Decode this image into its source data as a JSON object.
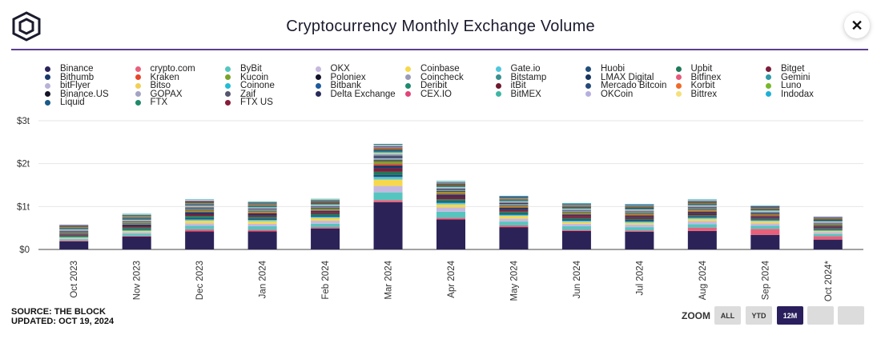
{
  "title": "Cryptocurrency Monthly Exchange Volume",
  "footer": {
    "source": "SOURCE: THE BLOCK",
    "updated": "UPDATED: OCT 19, 2024"
  },
  "zoom": {
    "label": "ZOOM",
    "buttons": [
      "ALL",
      "YTD",
      "12M",
      "",
      ""
    ],
    "active": "12M"
  },
  "legend": [
    {
      "name": "Binance",
      "color": "#2b2358"
    },
    {
      "name": "crypto.com",
      "color": "#e8607a"
    },
    {
      "name": "ByBit",
      "color": "#54c6bf"
    },
    {
      "name": "OKX",
      "color": "#c5b8e0"
    },
    {
      "name": "Coinbase",
      "color": "#f7d84b"
    },
    {
      "name": "Gate.io",
      "color": "#4fc7de"
    },
    {
      "name": "Huobi",
      "color": "#1f4e79"
    },
    {
      "name": "Upbit",
      "color": "#1f7a5a"
    },
    {
      "name": "Bitget",
      "color": "#7a1f3a"
    },
    {
      "name": "Bithumb",
      "color": "#1b3a6b"
    },
    {
      "name": "Kraken",
      "color": "#e8452a"
    },
    {
      "name": "Kucoin",
      "color": "#7aa22b"
    },
    {
      "name": "Poloniex",
      "color": "#12122a"
    },
    {
      "name": "Coincheck",
      "color": "#9a9ab8"
    },
    {
      "name": "Bitstamp",
      "color": "#3a8f8f"
    },
    {
      "name": "LMAX Digital",
      "color": "#16365e"
    },
    {
      "name": "Bitfinex",
      "color": "#e65a7a"
    },
    {
      "name": "Gemini",
      "color": "#2f9aa8"
    },
    {
      "name": "bitFlyer",
      "color": "#b8b2d8"
    },
    {
      "name": "Bitso",
      "color": "#f2cf55"
    },
    {
      "name": "Coinone",
      "color": "#22bcd4"
    },
    {
      "name": "Bitbank",
      "color": "#1d5a9e"
    },
    {
      "name": "Deribit",
      "color": "#1e8a6e"
    },
    {
      "name": "itBit",
      "color": "#6e1a2e"
    },
    {
      "name": "Mercado Bitcoin",
      "color": "#244a7a"
    },
    {
      "name": "Korbit",
      "color": "#ef6a2a"
    },
    {
      "name": "Luno",
      "color": "#78b82a"
    },
    {
      "name": "Binance.US",
      "color": "#141428"
    },
    {
      "name": "GOPAX",
      "color": "#a3a3c6"
    },
    {
      "name": "Zaif",
      "color": "#555570"
    },
    {
      "name": "Delta Exchange",
      "color": "#2a2a5a"
    },
    {
      "name": "CEX.IO",
      "color": "#e0457a"
    },
    {
      "name": "BitMEX",
      "color": "#3fb5a5"
    },
    {
      "name": "OKCoin",
      "color": "#b7aee0"
    },
    {
      "name": "Bittrex",
      "color": "#f5e07a"
    },
    {
      "name": "Indodax",
      "color": "#1fb0d8"
    },
    {
      "name": "Liquid",
      "color": "#1a5a8a"
    },
    {
      "name": "FTX",
      "color": "#1f8a6a"
    },
    {
      "name": "FTX US",
      "color": "#8a1a3a"
    }
  ],
  "chart_data": {
    "type": "bar",
    "stacked": true,
    "title": "Cryptocurrency Monthly Exchange Volume",
    "xlabel": "",
    "ylabel": "",
    "ylim": [
      0,
      3
    ],
    "y_ticks": [
      "$0",
      "$1t",
      "$2t",
      "$3t"
    ],
    "grid": true,
    "legend_position": "top",
    "categories": [
      "Oct 2023",
      "Nov 2023",
      "Dec 2023",
      "Jan 2024",
      "Feb 2024",
      "Mar 2024",
      "Apr 2024",
      "May 2024",
      "Jun 2024",
      "Jul 2024",
      "Aug 2024",
      "Sep 2024",
      "Oct 2024*"
    ],
    "series": [
      {
        "name": "Binance",
        "values": [
          0.19,
          0.3,
          0.42,
          0.42,
          0.49,
          1.1,
          0.7,
          0.52,
          0.43,
          0.41,
          0.43,
          0.34,
          0.23
        ]
      },
      {
        "name": "crypto.com",
        "values": [
          0.02,
          0.02,
          0.05,
          0.04,
          0.03,
          0.05,
          0.04,
          0.04,
          0.03,
          0.03,
          0.08,
          0.14,
          0.08
        ]
      },
      {
        "name": "ByBit",
        "values": [
          0.03,
          0.05,
          0.08,
          0.08,
          0.08,
          0.18,
          0.14,
          0.09,
          0.08,
          0.08,
          0.08,
          0.07,
          0.05
        ]
      },
      {
        "name": "OKX",
        "values": [
          0.02,
          0.03,
          0.06,
          0.06,
          0.07,
          0.15,
          0.1,
          0.07,
          0.06,
          0.06,
          0.07,
          0.06,
          0.04
        ]
      },
      {
        "name": "Coinbase",
        "values": [
          0.02,
          0.03,
          0.06,
          0.06,
          0.06,
          0.15,
          0.07,
          0.06,
          0.04,
          0.04,
          0.05,
          0.05,
          0.03
        ]
      },
      {
        "name": "Gate.io",
        "values": [
          0.01,
          0.02,
          0.03,
          0.03,
          0.03,
          0.06,
          0.04,
          0.03,
          0.03,
          0.03,
          0.03,
          0.02,
          0.02
        ]
      },
      {
        "name": "Huobi",
        "values": [
          0.01,
          0.02,
          0.03,
          0.03,
          0.03,
          0.05,
          0.03,
          0.03,
          0.03,
          0.03,
          0.03,
          0.02,
          0.02
        ]
      },
      {
        "name": "Upbit",
        "values": [
          0.02,
          0.04,
          0.05,
          0.04,
          0.04,
          0.07,
          0.05,
          0.04,
          0.03,
          0.03,
          0.03,
          0.02,
          0.02
        ]
      },
      {
        "name": "Bitget",
        "values": [
          0.02,
          0.03,
          0.04,
          0.04,
          0.04,
          0.08,
          0.06,
          0.05,
          0.05,
          0.05,
          0.05,
          0.04,
          0.03
        ]
      },
      {
        "name": "Bithumb",
        "values": [
          0.02,
          0.04,
          0.05,
          0.04,
          0.03,
          0.07,
          0.05,
          0.04,
          0.03,
          0.03,
          0.03,
          0.02,
          0.02
        ]
      },
      {
        "name": "Kraken",
        "values": [
          0.01,
          0.01,
          0.02,
          0.02,
          0.02,
          0.04,
          0.03,
          0.02,
          0.02,
          0.02,
          0.02,
          0.02,
          0.01
        ]
      },
      {
        "name": "Kucoin",
        "values": [
          0.01,
          0.02,
          0.03,
          0.03,
          0.03,
          0.06,
          0.04,
          0.03,
          0.03,
          0.03,
          0.03,
          0.02,
          0.02
        ]
      },
      {
        "name": "Poloniex",
        "values": [
          0.01,
          0.01,
          0.01,
          0.01,
          0.01,
          0.02,
          0.01,
          0.01,
          0.01,
          0.01,
          0.01,
          0.01,
          0.01
        ]
      },
      {
        "name": "Coincheck",
        "values": [
          0.01,
          0.01,
          0.02,
          0.02,
          0.02,
          0.04,
          0.02,
          0.02,
          0.02,
          0.02,
          0.02,
          0.01,
          0.01
        ]
      },
      {
        "name": "Bitstamp",
        "values": [
          0.01,
          0.01,
          0.01,
          0.01,
          0.01,
          0.02,
          0.01,
          0.01,
          0.01,
          0.01,
          0.01,
          0.01,
          0.01
        ]
      },
      {
        "name": "LMAX Digital",
        "values": [
          0.01,
          0.01,
          0.01,
          0.01,
          0.01,
          0.03,
          0.02,
          0.02,
          0.01,
          0.01,
          0.01,
          0.01,
          0.01
        ]
      },
      {
        "name": "Bitfinex",
        "values": [
          0.01,
          0.01,
          0.01,
          0.01,
          0.01,
          0.02,
          0.01,
          0.01,
          0.01,
          0.01,
          0.01,
          0.01,
          0.01
        ]
      },
      {
        "name": "Gemini",
        "values": [
          0.01,
          0.01,
          0.01,
          0.01,
          0.01,
          0.02,
          0.01,
          0.01,
          0.01,
          0.01,
          0.01,
          0.01,
          0.01
        ]
      },
      {
        "name": "bitFlyer",
        "values": [
          0.01,
          0.01,
          0.01,
          0.01,
          0.01,
          0.02,
          0.01,
          0.01,
          0.01,
          0.01,
          0.01,
          0.01,
          0.01
        ]
      },
      {
        "name": "Bitso",
        "values": [
          0.01,
          0.01,
          0.01,
          0.01,
          0.01,
          0.02,
          0.01,
          0.01,
          0.01,
          0.01,
          0.01,
          0.01,
          0.01
        ]
      },
      {
        "name": "Coinone",
        "values": [
          0.01,
          0.01,
          0.01,
          0.01,
          0.01,
          0.02,
          0.01,
          0.01,
          0.01,
          0.01,
          0.01,
          0.01,
          0.01
        ]
      },
      {
        "name": "Bitbank",
        "values": [
          0.01,
          0.01,
          0.01,
          0.01,
          0.01,
          0.02,
          0.01,
          0.01,
          0.01,
          0.01,
          0.01,
          0.01,
          0.01
        ]
      },
      {
        "name": "Deribit",
        "values": [
          0.01,
          0.01,
          0.01,
          0.01,
          0.01,
          0.02,
          0.01,
          0.01,
          0.01,
          0.01,
          0.01,
          0.01,
          0.01
        ]
      },
      {
        "name": "itBit",
        "values": [
          0.01,
          0.01,
          0.01,
          0.01,
          0.01,
          0.01,
          0.01,
          0.01,
          0.01,
          0.01,
          0.01,
          0.01,
          0.01
        ]
      },
      {
        "name": "Mercado Bitcoin",
        "values": [
          0.01,
          0.01,
          0.01,
          0.01,
          0.01,
          0.01,
          0.01,
          0.01,
          0.01,
          0.01,
          0.01,
          0.01,
          0.01
        ]
      },
      {
        "name": "Korbit",
        "values": [
          0.01,
          0.01,
          0.01,
          0.01,
          0.01,
          0.02,
          0.01,
          0.01,
          0.01,
          0.01,
          0.01,
          0.01,
          0.01
        ]
      },
      {
        "name": "Luno",
        "values": [
          0.01,
          0.01,
          0.01,
          0.01,
          0.01,
          0.01,
          0.01,
          0.01,
          0.01,
          0.01,
          0.01,
          0.01,
          0.01
        ]
      },
      {
        "name": "Binance.US",
        "values": [
          0.01,
          0.01,
          0.01,
          0.01,
          0.01,
          0.01,
          0.01,
          0.01,
          0.01,
          0.01,
          0.01,
          0.01,
          0.01
        ]
      },
      {
        "name": "GOPAX",
        "values": [
          0.01,
          0.01,
          0.01,
          0.01,
          0.01,
          0.01,
          0.01,
          0.01,
          0.01,
          0.01,
          0.01,
          0.01,
          0.01
        ]
      },
      {
        "name": "Zaif",
        "values": [
          0.01,
          0.01,
          0.01,
          0.01,
          0.01,
          0.01,
          0.01,
          0.01,
          0.01,
          0.01,
          0.01,
          0.01,
          0.01
        ]
      },
      {
        "name": "Delta Exchange",
        "values": [
          0.01,
          0.01,
          0.01,
          0.01,
          0.01,
          0.01,
          0.01,
          0.01,
          0.01,
          0.01,
          0.01,
          0.01,
          0.01
        ]
      },
      {
        "name": "CEX.IO",
        "values": [
          0.0,
          0.0,
          0.01,
          0.0,
          0.0,
          0.01,
          0.0,
          0.0,
          0.0,
          0.0,
          0.0,
          0.0,
          0.0
        ]
      },
      {
        "name": "BitMEX",
        "values": [
          0.0,
          0.01,
          0.01,
          0.01,
          0.01,
          0.01,
          0.01,
          0.01,
          0.01,
          0.01,
          0.01,
          0.0,
          0.0
        ]
      },
      {
        "name": "OKCoin",
        "values": [
          0.0,
          0.0,
          0.01,
          0.0,
          0.0,
          0.01,
          0.01,
          0.0,
          0.0,
          0.0,
          0.01,
          0.0,
          0.0
        ]
      },
      {
        "name": "Bittrex",
        "values": [
          0.0,
          0.01,
          0.01,
          0.01,
          0.01,
          0.01,
          0.01,
          0.0,
          0.0,
          0.0,
          0.01,
          0.0,
          0.0
        ]
      },
      {
        "name": "Indodax",
        "values": [
          0.0,
          0.01,
          0.01,
          0.01,
          0.01,
          0.01,
          0.01,
          0.01,
          0.01,
          0.01,
          0.01,
          0.01,
          0.0
        ]
      },
      {
        "name": "Liquid",
        "values": [
          0.0,
          0.0,
          0.0,
          0.0,
          0.0,
          0.01,
          0.0,
          0.0,
          0.0,
          0.0,
          0.0,
          0.0,
          0.0
        ]
      },
      {
        "name": "FTX",
        "values": [
          0.0,
          0.0,
          0.0,
          0.0,
          0.0,
          0.0,
          0.0,
          0.0,
          0.0,
          0.0,
          0.0,
          0.0,
          0.0
        ]
      },
      {
        "name": "FTX US",
        "values": [
          0.0,
          0.0,
          0.0,
          0.0,
          0.0,
          0.0,
          0.0,
          0.0,
          0.0,
          0.0,
          0.0,
          0.0,
          0.0
        ]
      }
    ]
  }
}
